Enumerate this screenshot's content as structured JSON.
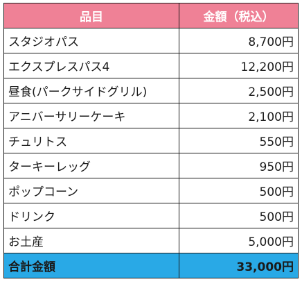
{
  "table": {
    "headers": {
      "item": "品目",
      "amount": "金額（税込）"
    },
    "rows": [
      {
        "item": "スタジオパス",
        "amount": "8,700円"
      },
      {
        "item": "エクスプレスパス4",
        "amount": "12,200円"
      },
      {
        "item": "昼食(パークサイドグリル)",
        "amount": "2,500円"
      },
      {
        "item": "アニバーサリーケーキ",
        "amount": "2,100円"
      },
      {
        "item": "チュリトス",
        "amount": "550円"
      },
      {
        "item": "ターキーレッグ",
        "amount": "950円"
      },
      {
        "item": "ポップコーン",
        "amount": "500円"
      },
      {
        "item": "ドリンク",
        "amount": "500円"
      },
      {
        "item": "お土産",
        "amount": "5,000円"
      }
    ],
    "total": {
      "label": "合計金額",
      "amount": "33,000円"
    }
  },
  "colors": {
    "header_bg": "#ef8196",
    "total_bg": "#29a9e6"
  }
}
